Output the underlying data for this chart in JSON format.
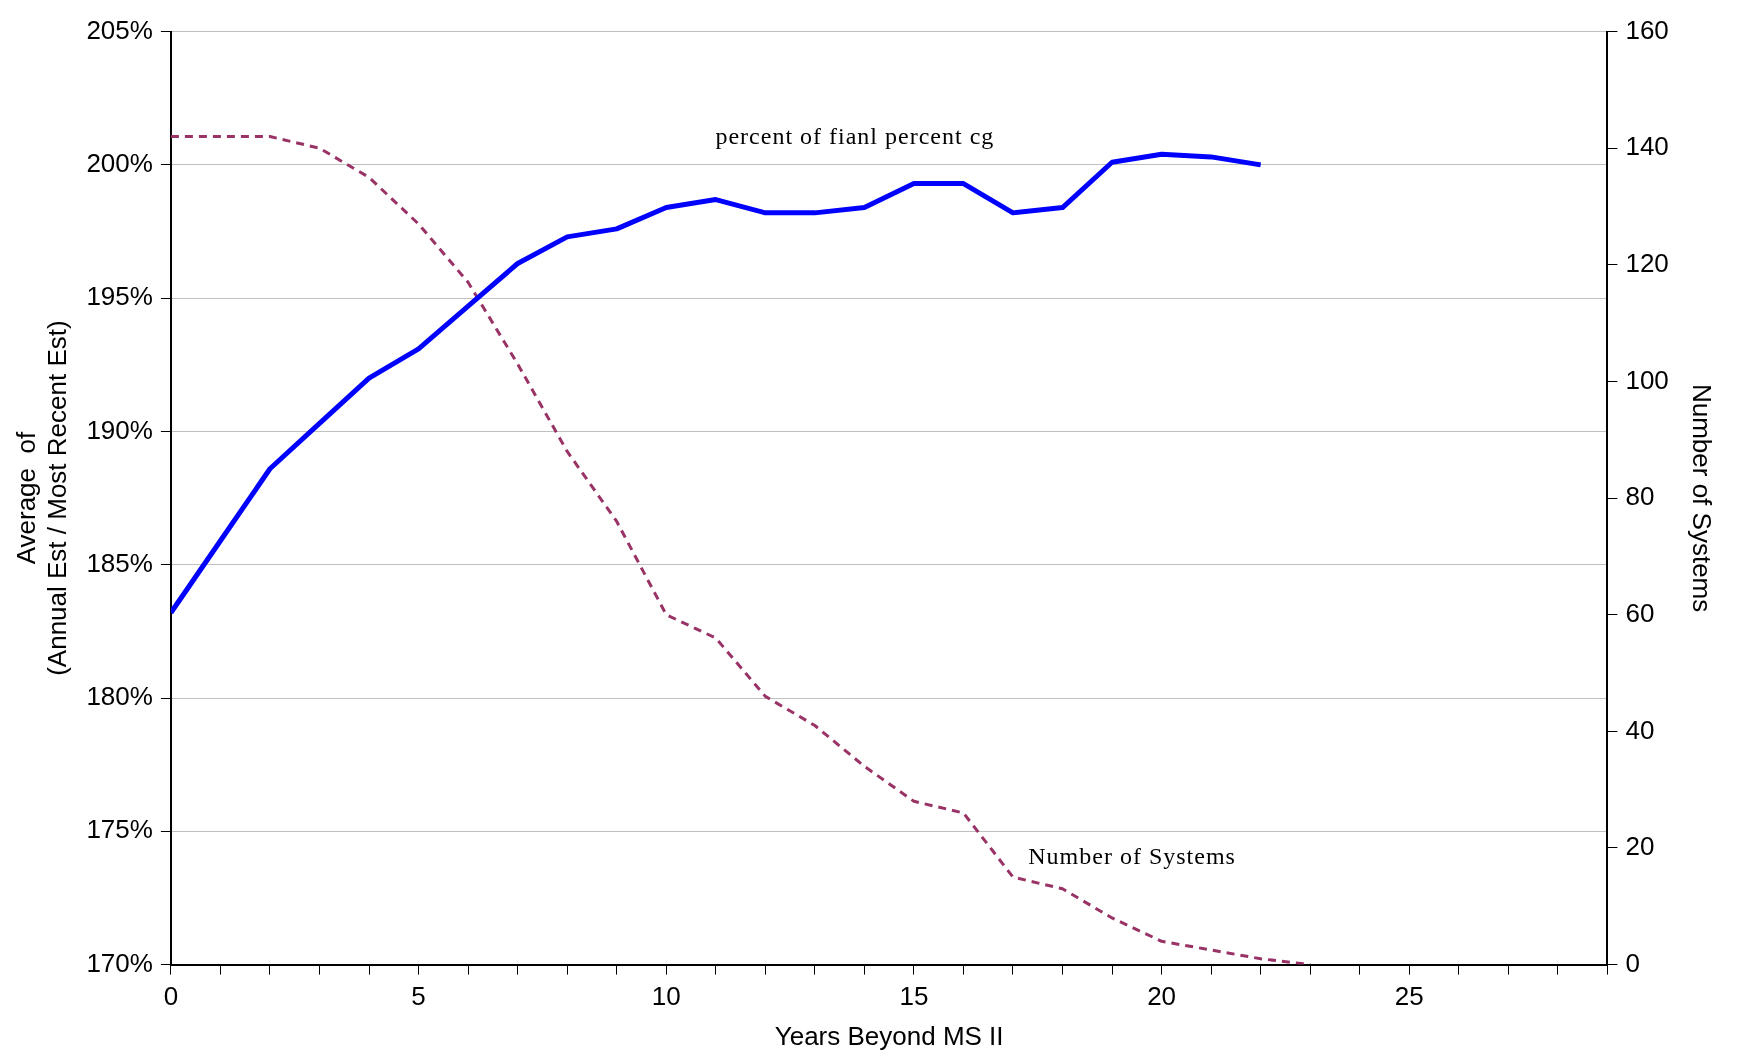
{
  "chart_data": {
    "type": "line",
    "ylabel": "Average  of\n(Annual Est / Most Recent Est)",
    "y2label": "Number of Systems",
    "xlabel": "Years Beyond MS II",
    "x": [
      0,
      1,
      2,
      3,
      4,
      5,
      6,
      7,
      8,
      9,
      10,
      11,
      12,
      13,
      14,
      15,
      16,
      17,
      18,
      19,
      20,
      21,
      22,
      23
    ],
    "series": [
      {
        "name": "percent of fianl percent cg",
        "color": "#0000ff",
        "line_style": "solid",
        "values": [
          183.2,
          185.9,
          188.6,
          190.3,
          192.0,
          193.1,
          194.7,
          196.3,
          197.3,
          197.6,
          198.4,
          198.7,
          198.2,
          198.2,
          198.4,
          199.3,
          199.3,
          198.2,
          198.4,
          200.1,
          200.4,
          200.3,
          200.0,
          null
        ]
      },
      {
        "name": "Number of Systems",
        "color": "#993366",
        "line_style": "dashed",
        "axis": "y2",
        "values": [
          142,
          142,
          142,
          140,
          135,
          127,
          117,
          103,
          88,
          76,
          60,
          56,
          46,
          41,
          34,
          28,
          26,
          15,
          13,
          8,
          4,
          2.5,
          1,
          0
        ]
      }
    ],
    "xlim": [
      0,
      29
    ],
    "xticks": [
      0,
      {
        "value": 1,
        "label": null
      },
      {
        "value": 2,
        "label": null
      },
      {
        "value": 3,
        "label": null
      },
      {
        "value": 4,
        "label": null
      },
      5,
      {
        "value": 6,
        "label": null
      },
      {
        "value": 7,
        "label": null
      },
      {
        "value": 8,
        "label": null
      },
      {
        "value": 9,
        "label": null
      },
      10,
      {
        "value": 11,
        "label": null
      },
      {
        "value": 12,
        "label": null
      },
      {
        "value": 13,
        "label": null
      },
      {
        "value": 14,
        "label": null
      },
      15,
      {
        "value": 16,
        "label": null
      },
      {
        "value": 17,
        "label": null
      },
      {
        "value": 18,
        "label": null
      },
      {
        "value": 19,
        "label": null
      },
      20,
      {
        "value": 21,
        "label": null
      },
      {
        "value": 22,
        "label": null
      },
      {
        "value": 23,
        "label": null
      },
      {
        "value": 24,
        "label": null
      },
      25,
      {
        "value": 26,
        "label": null
      },
      {
        "value": 27,
        "label": null
      },
      {
        "value": 28,
        "label": null
      },
      {
        "value": 29,
        "label": null
      }
    ],
    "ylim": [
      170,
      205
    ],
    "yticks": [
      {
        "value": 170,
        "label": "170%"
      },
      {
        "value": 175,
        "label": "175%"
      },
      {
        "value": 180,
        "label": "180%"
      },
      {
        "value": 185,
        "label": "185%"
      },
      {
        "value": 190,
        "label": "190%"
      },
      {
        "value": 195,
        "label": "195%"
      },
      {
        "value": 200,
        "label": "200%"
      },
      {
        "value": 205,
        "label": "205%"
      }
    ],
    "y2lim": [
      0,
      160
    ],
    "y2ticks": [
      0,
      20,
      40,
      60,
      80,
      100,
      120,
      140,
      160
    ],
    "grid": "y"
  }
}
